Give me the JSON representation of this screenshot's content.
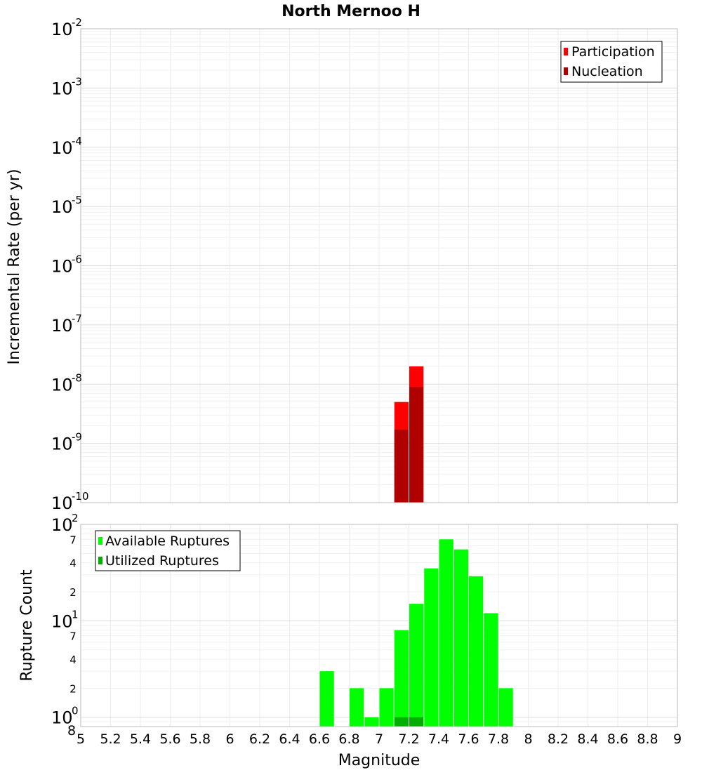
{
  "chart_data": [
    {
      "type": "bar",
      "title": "North Mernoo H",
      "xlabel": "",
      "ylabel": "Incremental Rate (per yr)",
      "yscale": "log",
      "ylim": [
        1e-10,
        0.01
      ],
      "xlim": [
        5,
        9
      ],
      "y_tick_labels": [
        {
          "value": 1e-10,
          "base": "10",
          "exp": "-10"
        },
        {
          "value": 1e-09,
          "base": "10",
          "exp": "-9"
        },
        {
          "value": 1e-08,
          "base": "10",
          "exp": "-8"
        },
        {
          "value": 1e-07,
          "base": "10",
          "exp": "-7"
        },
        {
          "value": 1e-06,
          "base": "10",
          "exp": "-6"
        },
        {
          "value": 1e-05,
          "base": "10",
          "exp": "-5"
        },
        {
          "value": 0.0001,
          "base": "10",
          "exp": "-4"
        },
        {
          "value": 0.001,
          "base": "10",
          "exp": "-3"
        },
        {
          "value": 0.01,
          "base": "10",
          "exp": "-2"
        }
      ],
      "legend": {
        "position": "top-right"
      },
      "series": [
        {
          "name": "Participation",
          "color": "#ff0000",
          "points": [
            {
              "x": 7.15,
              "y": 5e-09
            },
            {
              "x": 7.25,
              "y": 2e-08
            }
          ]
        },
        {
          "name": "Nucleation",
          "color": "#b00000",
          "points": [
            {
              "x": 7.15,
              "y": 1.7e-09
            },
            {
              "x": 7.25,
              "y": 9e-09
            }
          ]
        }
      ]
    },
    {
      "type": "bar",
      "title": "",
      "xlabel": "Magnitude",
      "ylabel": "Rupture Count",
      "yscale": "log",
      "ylim": [
        0.8,
        100
      ],
      "xlim": [
        5,
        9
      ],
      "x_tick_labels": [
        "5",
        "5.2",
        "5.4",
        "5.6",
        "5.8",
        "6",
        "6.2",
        "6.4",
        "6.6",
        "6.8",
        "7",
        "7.2",
        "7.4",
        "7.6",
        "7.8",
        "8",
        "8.2",
        "8.4",
        "8.6",
        "8.8",
        "9"
      ],
      "y_tick_labels": [
        {
          "value": 1,
          "base": "10",
          "exp": "0"
        },
        {
          "value": 10,
          "base": "10",
          "exp": "1"
        },
        {
          "value": 100,
          "base": "10",
          "exp": "2"
        }
      ],
      "y_minor_labels": [
        {
          "value": 0.8,
          "label": "8"
        },
        {
          "value": 2,
          "label": "2"
        },
        {
          "value": 4,
          "label": "4"
        },
        {
          "value": 7,
          "label": "7"
        },
        {
          "value": 20,
          "label": "2"
        },
        {
          "value": 40,
          "label": "4"
        },
        {
          "value": 70,
          "label": "7"
        }
      ],
      "legend": {
        "position": "top-left"
      },
      "series": [
        {
          "name": "Available Ruptures",
          "color": "#00ff00",
          "points": [
            {
              "x": 6.65,
              "y": 3
            },
            {
              "x": 6.85,
              "y": 2
            },
            {
              "x": 6.95,
              "y": 1
            },
            {
              "x": 7.05,
              "y": 2
            },
            {
              "x": 7.15,
              "y": 8
            },
            {
              "x": 7.25,
              "y": 15
            },
            {
              "x": 7.35,
              "y": 35
            },
            {
              "x": 7.45,
              "y": 70
            },
            {
              "x": 7.55,
              "y": 55
            },
            {
              "x": 7.65,
              "y": 29
            },
            {
              "x": 7.75,
              "y": 12
            },
            {
              "x": 7.85,
              "y": 2
            }
          ]
        },
        {
          "name": "Utilized Ruptures",
          "color": "#00b000",
          "points": [
            {
              "x": 7.15,
              "y": 1
            },
            {
              "x": 7.25,
              "y": 1
            }
          ]
        }
      ]
    }
  ]
}
